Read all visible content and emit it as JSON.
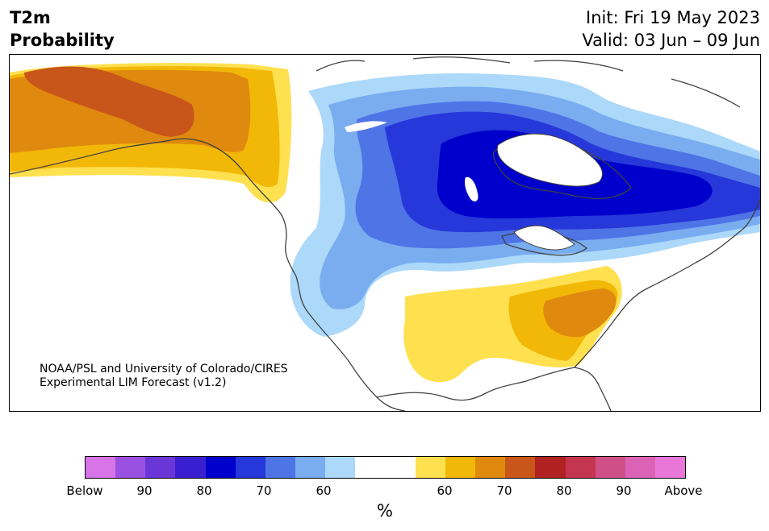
{
  "header": {
    "title_line1": "T2m",
    "title_line2": "Probability",
    "init_text": "Init: Fri 19 May 2023",
    "valid_text": "Valid: 03 Jun – 09 Jun"
  },
  "map": {
    "region": "North America",
    "credit_line1": "NOAA/PSL and University of Colorado/CIRES",
    "credit_line2": "Experimental LIM Forecast (v1.2)"
  },
  "colorbar": {
    "unit": "%",
    "colors": [
      "#d674e8",
      "#9a50e0",
      "#6a36d8",
      "#3a1fd0",
      "#0000cc",
      "#2638d9",
      "#4f74e6",
      "#79adf0",
      "#acd8fa",
      "#ffffff",
      "#ffffff",
      "#ffe04f",
      "#f2b808",
      "#df8a0e",
      "#c85519",
      "#b02222",
      "#c43550",
      "#cf5087",
      "#db63b5",
      "#e877d8"
    ],
    "tick_labels": [
      "Below",
      "90",
      "80",
      "70",
      "60",
      "60",
      "70",
      "80",
      "90",
      "Above"
    ]
  },
  "colors": {
    "below_60": "#acd8fa",
    "below_70": "#79adf0",
    "below_80": "#4f74e6",
    "below_90": "#2638d9",
    "below_strong": "#0000cc",
    "above_60": "#ffe04f",
    "above_70": "#f2b808",
    "above_80": "#df8a0e",
    "above_90": "#c85519",
    "coast": "#404040"
  }
}
